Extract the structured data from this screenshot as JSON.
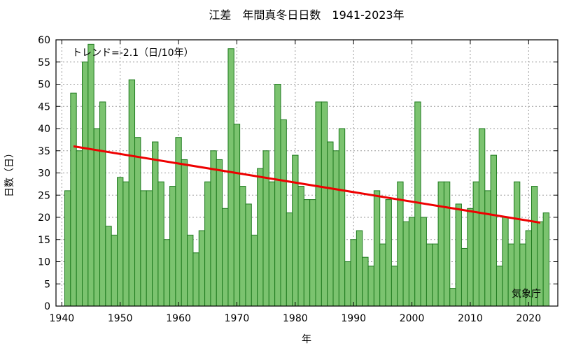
{
  "chart_data": {
    "type": "bar",
    "title": "江差　年間真冬日日数　1941-2023年",
    "xlabel": "年",
    "ylabel": "日数（日）",
    "trend_label": "トレンド=-2.1（日/10年）",
    "credit": "気象庁",
    "xlim": [
      1939,
      2025
    ],
    "ylim": [
      0,
      60
    ],
    "x_ticks": [
      1940,
      1950,
      1960,
      1970,
      1980,
      1990,
      2000,
      2010,
      2020
    ],
    "y_ticks": [
      0,
      5,
      10,
      15,
      20,
      25,
      30,
      35,
      40,
      45,
      50,
      55,
      60
    ],
    "grid": true,
    "years": [
      1941,
      1942,
      1943,
      1944,
      1945,
      1946,
      1947,
      1948,
      1949,
      1950,
      1951,
      1952,
      1953,
      1954,
      1955,
      1956,
      1957,
      1958,
      1959,
      1960,
      1961,
      1962,
      1963,
      1964,
      1965,
      1966,
      1967,
      1968,
      1969,
      1970,
      1971,
      1972,
      1973,
      1974,
      1975,
      1976,
      1977,
      1978,
      1979,
      1980,
      1981,
      1982,
      1983,
      1984,
      1985,
      1986,
      1987,
      1988,
      1989,
      1990,
      1991,
      1992,
      1993,
      1994,
      1995,
      1996,
      1997,
      1998,
      1999,
      2000,
      2001,
      2002,
      2003,
      2004,
      2005,
      2006,
      2007,
      2008,
      2009,
      2010,
      2011,
      2012,
      2013,
      2014,
      2015,
      2016,
      2017,
      2018,
      2019,
      2020,
      2021,
      2022,
      2023
    ],
    "values": [
      26,
      48,
      35,
      55,
      59,
      40,
      46,
      18,
      16,
      29,
      28,
      51,
      38,
      26,
      26,
      37,
      28,
      15,
      27,
      38,
      33,
      16,
      12,
      17,
      28,
      35,
      33,
      22,
      58,
      41,
      27,
      23,
      16,
      31,
      35,
      28,
      50,
      42,
      21,
      34,
      27,
      24,
      24,
      46,
      46,
      37,
      35,
      40,
      10,
      15,
      17,
      11,
      9,
      26,
      14,
      24,
      9,
      28,
      19,
      20,
      46,
      20,
      14,
      14,
      28,
      28,
      4,
      23,
      13,
      22,
      28,
      40,
      26,
      34,
      9,
      20,
      14,
      28,
      14,
      17,
      27,
      19,
      21
    ],
    "trend": {
      "x": [
        1942,
        2022
      ],
      "y": [
        36.0,
        18.8
      ]
    },
    "colors": {
      "bar_fill": "#7bc36f",
      "bar_stroke": "#1e7a1e",
      "trend": "#ee0000"
    }
  }
}
